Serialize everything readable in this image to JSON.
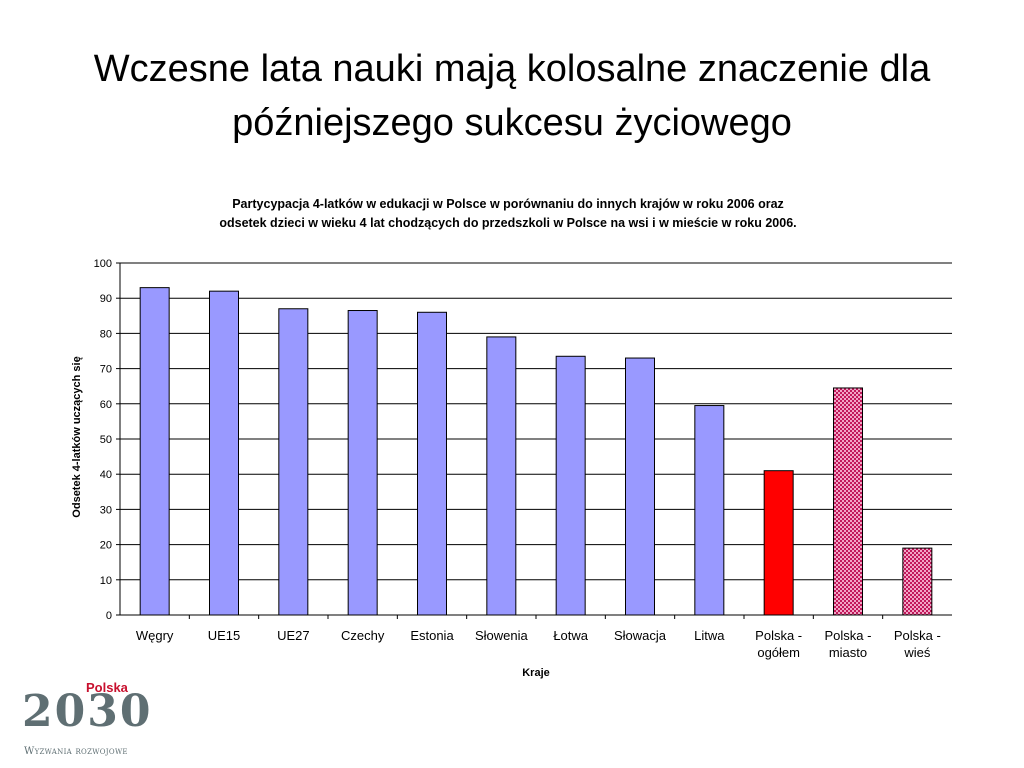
{
  "slide": {
    "title_line1": "Wczesne lata nauki mają kolosalne znaczenie dla",
    "title_line2": "późniejszego sukcesu życiowego"
  },
  "logo": {
    "country": "Polska",
    "year": "2030",
    "tagline": "Wyzwania rozwojowe"
  },
  "chart_data": {
    "type": "bar",
    "title_lines": [
      "Partycypacja 4-latków w edukacji w Polsce w porównaniu do innych krajów w roku 2006 oraz",
      "odsetek dzieci w wieku 4 lat chodzących do przedszkoli w Polsce na wsi i w mieście w roku 2006."
    ],
    "xlabel": "Kraje",
    "ylabel": "Odsetek 4-latków uczących się",
    "ylim": [
      0,
      100
    ],
    "yticks": [
      0,
      10,
      20,
      30,
      40,
      50,
      60,
      70,
      80,
      90,
      100
    ],
    "grid": true,
    "categories": [
      [
        "Węgry"
      ],
      [
        "UE15"
      ],
      [
        "UE27"
      ],
      [
        "Czechy"
      ],
      [
        "Estonia"
      ],
      [
        "Słowenia"
      ],
      [
        "Łotwa"
      ],
      [
        "Słowacja"
      ],
      [
        "Litwa"
      ],
      [
        "Polska -",
        "ogółem"
      ],
      [
        "Polska -",
        "miasto"
      ],
      [
        "Polska -",
        "wieś"
      ]
    ],
    "values": [
      93,
      92,
      87,
      86.5,
      86,
      79,
      73.5,
      73,
      59.5,
      41,
      64.5,
      19
    ],
    "colors": [
      "#9999ff",
      "#9999ff",
      "#9999ff",
      "#9999ff",
      "#9999ff",
      "#9999ff",
      "#9999ff",
      "#9999ff",
      "#9999ff",
      "#ff0000",
      "#e0588f",
      "#e0588f"
    ],
    "patterned": [
      false,
      false,
      false,
      false,
      false,
      false,
      false,
      false,
      false,
      false,
      true,
      true
    ]
  }
}
